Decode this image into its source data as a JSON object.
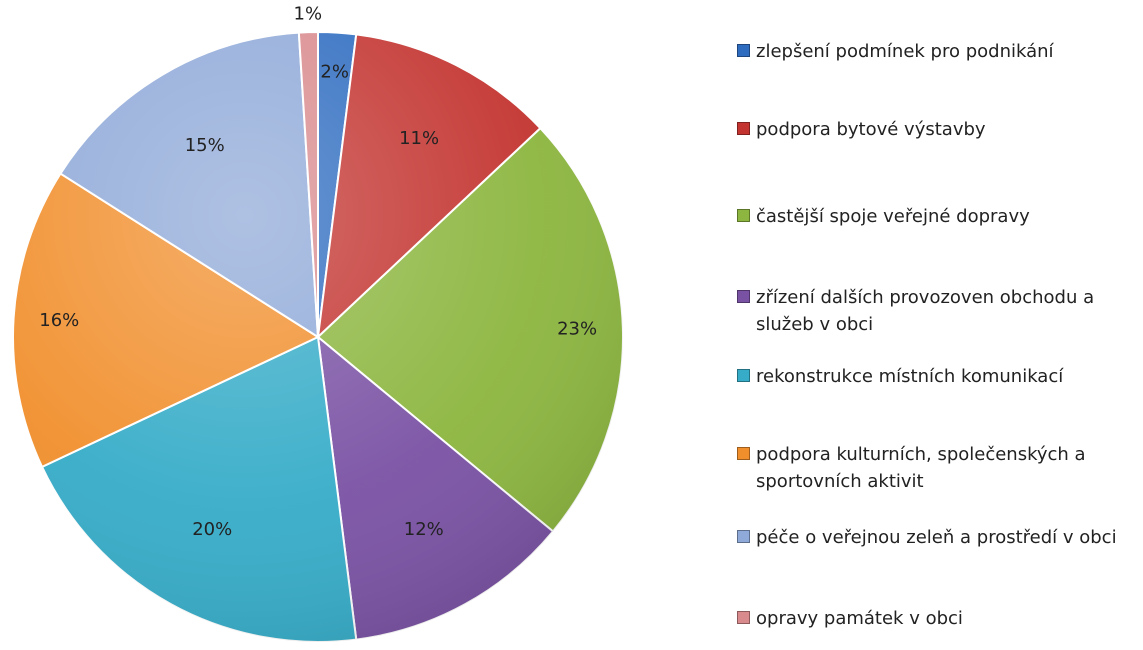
{
  "chart_data": {
    "type": "pie",
    "slices": [
      {
        "label": "zlepšení podmínek pro podnikání",
        "value": 2,
        "value_label": "2%",
        "color": "#2e6cc0"
      },
      {
        "label": "podpora bytové výstavby",
        "value": 11,
        "value_label": "11%",
        "color": "#c33430"
      },
      {
        "label": "častější spoje veřejné dopravy",
        "value": 23,
        "value_label": "23%",
        "color": "#8cb63f"
      },
      {
        "label": "zřízení dalších provozoven obchodu a služeb v obci",
        "value": 12,
        "value_label": "12%",
        "color": "#7a52a4"
      },
      {
        "label": "rekonstrukce místních komunikací",
        "value": 20,
        "value_label": "20%",
        "color": "#36acc8"
      },
      {
        "label": "podpora kulturních, společenských a sportovních aktivit",
        "value": 16,
        "value_label": "16%",
        "color": "#f18f2d"
      },
      {
        "label": "péče o veřejnou zeleň a prostředí v obci",
        "value": 15,
        "value_label": "15%",
        "color": "#8fa9d8"
      },
      {
        "label": "opravy památek v obci",
        "value": 1,
        "value_label": "1%",
        "color": "#d98a8d"
      }
    ],
    "legend_position": "right"
  }
}
